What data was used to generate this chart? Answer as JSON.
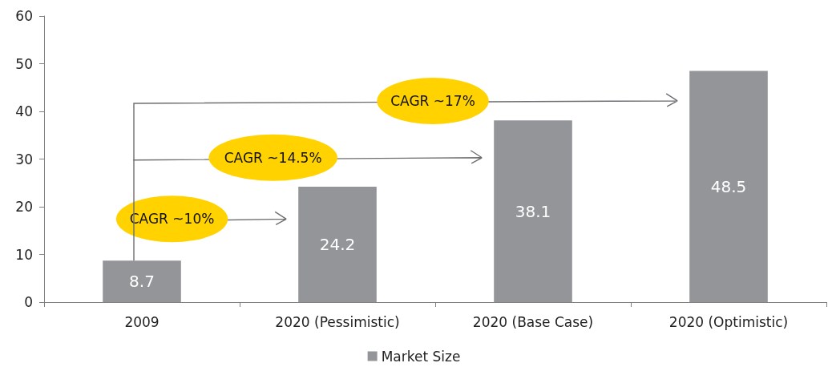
{
  "chart_data": {
    "type": "bar",
    "categories": [
      "2009",
      "2020 (Pessimistic)",
      "2020 (Base Case)",
      "2020 (Optimistic)"
    ],
    "series": [
      {
        "name": "Market Size",
        "color": "#939598",
        "values": [
          8.7,
          24.2,
          38.1,
          48.5
        ]
      }
    ],
    "ylim": [
      0,
      60
    ],
    "yticks": [
      0,
      10,
      20,
      30,
      40,
      50,
      60
    ],
    "data_labels": true,
    "grid": false,
    "legend": "bottom",
    "annotations": [
      "CAGR ~10%",
      "CAGR ~14.5%",
      "CAGR ~17%"
    ]
  }
}
